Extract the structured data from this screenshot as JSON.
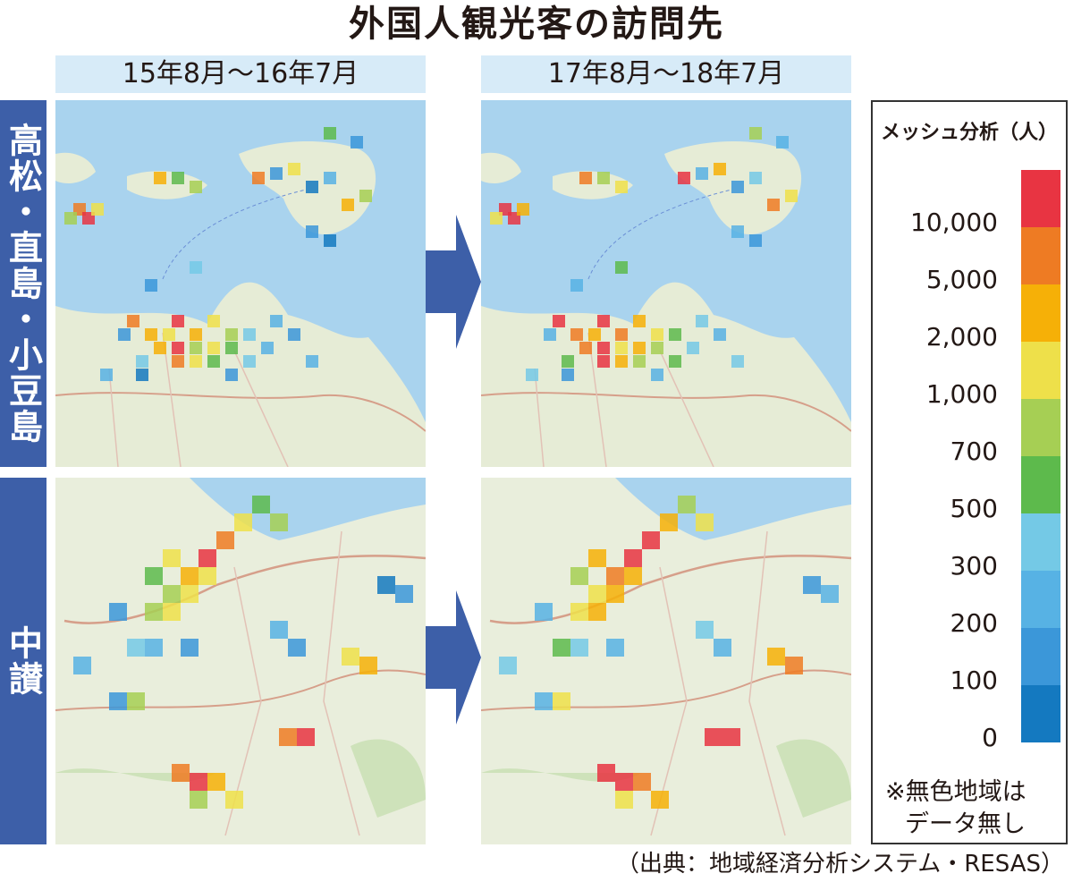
{
  "title": "外国人観光客の訪問先",
  "periods": [
    "15年8月〜16年7月",
    "17年8月〜18年7月"
  ],
  "regions": [
    "高松・直島・小豆島",
    "中讃"
  ],
  "legend": {
    "title": "メッシュ分析（人）",
    "ticks": [
      "10,000",
      "5,000",
      "2,000",
      "1,000",
      "700",
      "500",
      "300",
      "200",
      "100",
      "0"
    ],
    "colors": [
      "#e83442",
      "#ee7b23",
      "#f6b007",
      "#eee04a",
      "#a6cf54",
      "#5dba4c",
      "#74c9e6",
      "#57b2e4",
      "#3b97d9",
      "#1479c0"
    ],
    "note_line1": "※無色地域は",
    "note_line2": "データ無し"
  },
  "source": "（出典：地域経済分析システム・RESAS）"
}
